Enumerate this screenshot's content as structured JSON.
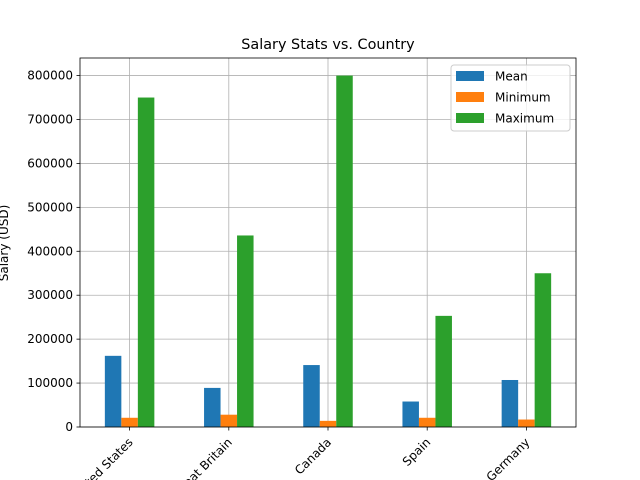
{
  "chart_data": {
    "type": "bar",
    "title": "Salary Stats vs. Country",
    "xlabel": "",
    "ylabel": "Salary (USD)",
    "categories": [
      "United States",
      "Great Britain",
      "Canada",
      "Spain",
      "Germany"
    ],
    "series": [
      {
        "name": "Mean",
        "color": "#1f77b4",
        "values": [
          162000,
          89000,
          141000,
          58000,
          107000
        ]
      },
      {
        "name": "Minimum",
        "color": "#ff7f0e",
        "values": [
          21000,
          28000,
          14000,
          21000,
          17000
        ]
      },
      {
        "name": "Maximum",
        "color": "#2ca02c",
        "values": [
          750000,
          436000,
          800000,
          253000,
          350000
        ]
      }
    ],
    "ylim": [
      0,
      840000
    ],
    "yticks": [
      0,
      100000,
      200000,
      300000,
      400000,
      500000,
      600000,
      700000,
      800000
    ],
    "grid": true,
    "legend_position": "top-right",
    "xtick_rotation": 45
  }
}
